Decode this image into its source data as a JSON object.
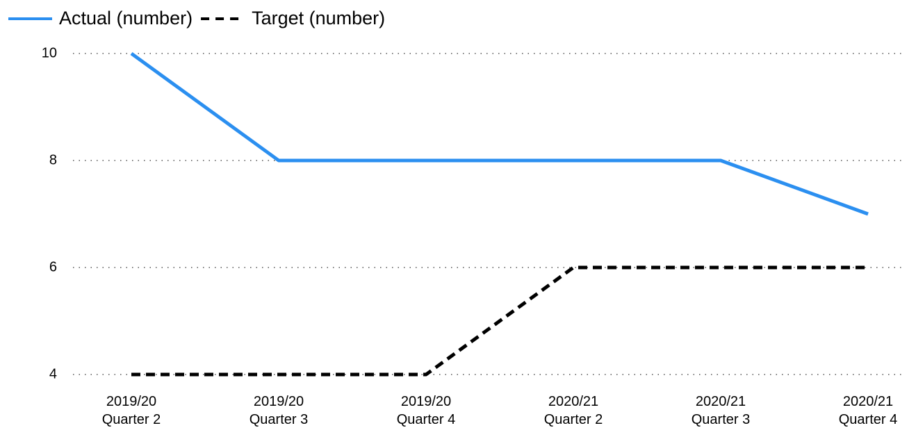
{
  "chart_data": {
    "type": "line",
    "categories": [
      "2019/20 Quarter 2",
      "2019/20 Quarter 3",
      "2019/20 Quarter 4",
      "2020/21 Quarter 2",
      "2020/21 Quarter 3",
      "2020/21 Quarter 4"
    ],
    "series": [
      {
        "name": "Actual (number)",
        "color": "#2b8ff0",
        "dash": false,
        "values": [
          10,
          8,
          8,
          8,
          8,
          7
        ]
      },
      {
        "name": "Target (number)",
        "color": "#000000",
        "dash": true,
        "values": [
          4,
          4,
          4,
          6,
          6,
          6
        ]
      }
    ],
    "ylim": [
      4,
      10
    ],
    "yticks": [
      4,
      6,
      8,
      10
    ],
    "grid": true,
    "legend": "top-left"
  }
}
